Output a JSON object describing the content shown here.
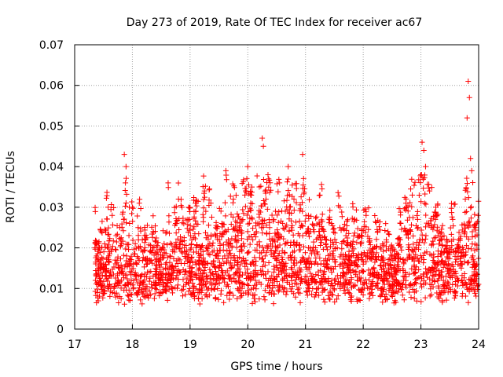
{
  "chart_data": {
    "type": "scatter",
    "title": "Day 273 of 2019, Rate Of TEC Index for receiver ac67",
    "xlabel": "GPS time / hours",
    "ylabel": "ROTI / TECUs",
    "xlim": [
      17,
      24
    ],
    "ylim": [
      0,
      0.07
    ],
    "xticks": [
      "17",
      "18",
      "19",
      "20",
      "21",
      "22",
      "23",
      "24"
    ],
    "yticks": [
      "0",
      "0.01",
      "0.02",
      "0.03",
      "0.04",
      "0.05",
      "0.06",
      "0.07"
    ],
    "grid": true,
    "marker": "+",
    "marker_color": "#ff0000",
    "series": [
      {
        "name": "ROTI",
        "x_start": 17.35,
        "x_end": 24.0,
        "description_of_density": "dense band of points",
        "points": [
          [
            17.36,
            0.012
          ],
          [
            17.38,
            0.018
          ],
          [
            17.4,
            0.009
          ],
          [
            17.42,
            0.02
          ],
          [
            17.44,
            0.015
          ],
          [
            17.46,
            0.024
          ],
          [
            17.48,
            0.011
          ],
          [
            17.5,
            0.016
          ],
          [
            17.52,
            0.021
          ],
          [
            17.55,
            0.013
          ],
          [
            17.58,
            0.03
          ],
          [
            17.6,
            0.019
          ],
          [
            17.62,
            0.014
          ],
          [
            17.65,
            0.028
          ],
          [
            17.68,
            0.01
          ],
          [
            17.7,
            0.017
          ],
          [
            17.72,
            0.023
          ],
          [
            17.75,
            0.012
          ],
          [
            17.78,
            0.008
          ],
          [
            17.8,
            0.022
          ],
          [
            17.82,
            0.015
          ],
          [
            17.85,
            0.027
          ],
          [
            17.86,
            0.043
          ],
          [
            17.88,
            0.036
          ],
          [
            17.89,
            0.04
          ],
          [
            17.9,
            0.018
          ],
          [
            17.93,
            0.011
          ],
          [
            17.95,
            0.026
          ],
          [
            17.98,
            0.014
          ],
          [
            18.0,
            0.03
          ],
          [
            18.02,
            0.016
          ],
          [
            18.05,
            0.021
          ],
          [
            18.08,
            0.009
          ],
          [
            18.1,
            0.025
          ],
          [
            18.12,
            0.031
          ],
          [
            18.15,
            0.013
          ],
          [
            18.18,
            0.019
          ],
          [
            18.2,
            0.01
          ],
          [
            18.23,
            0.022
          ],
          [
            18.26,
            0.014
          ],
          [
            18.3,
            0.017
          ],
          [
            18.33,
            0.011
          ],
          [
            18.36,
            0.024
          ],
          [
            18.4,
            0.013
          ],
          [
            18.43,
            0.019
          ],
          [
            18.46,
            0.009
          ],
          [
            18.5,
            0.016
          ],
          [
            18.55,
            0.021
          ],
          [
            18.6,
            0.012
          ],
          [
            18.62,
            0.036
          ],
          [
            18.65,
            0.018
          ],
          [
            18.7,
            0.01
          ],
          [
            18.75,
            0.026
          ],
          [
            18.8,
            0.032
          ],
          [
            18.83,
            0.014
          ],
          [
            18.86,
            0.03
          ],
          [
            18.9,
            0.02
          ],
          [
            18.93,
            0.011
          ],
          [
            18.96,
            0.027
          ],
          [
            19.0,
            0.015
          ],
          [
            19.03,
            0.022
          ],
          [
            19.06,
            0.009
          ],
          [
            19.1,
            0.029
          ],
          [
            19.15,
            0.017
          ],
          [
            19.2,
            0.012
          ],
          [
            19.25,
            0.034
          ],
          [
            19.28,
            0.02
          ],
          [
            19.32,
            0.01
          ],
          [
            19.36,
            0.031
          ],
          [
            19.4,
            0.016
          ],
          [
            19.45,
            0.023
          ],
          [
            19.5,
            0.013
          ],
          [
            19.55,
            0.026
          ],
          [
            19.6,
            0.018
          ],
          [
            19.62,
            0.039
          ],
          [
            19.65,
            0.011
          ],
          [
            19.7,
            0.021
          ],
          [
            19.75,
            0.032
          ],
          [
            19.8,
            0.014
          ],
          [
            19.85,
            0.025
          ],
          [
            19.9,
            0.01
          ],
          [
            19.95,
            0.033
          ],
          [
            20.0,
            0.04
          ],
          [
            20.02,
            0.019
          ],
          [
            20.05,
            0.031
          ],
          [
            20.1,
            0.013
          ],
          [
            20.15,
            0.024
          ],
          [
            20.2,
            0.035
          ],
          [
            20.25,
            0.047
          ],
          [
            20.27,
            0.045
          ],
          [
            20.3,
            0.018
          ],
          [
            20.35,
            0.038
          ],
          [
            20.4,
            0.012
          ],
          [
            20.45,
            0.027
          ],
          [
            20.5,
            0.02
          ],
          [
            20.55,
            0.036
          ],
          [
            20.6,
            0.015
          ],
          [
            20.65,
            0.029
          ],
          [
            20.7,
            0.04
          ],
          [
            20.75,
            0.017
          ],
          [
            20.8,
            0.032
          ],
          [
            20.85,
            0.011
          ],
          [
            20.9,
            0.023
          ],
          [
            20.95,
            0.043
          ],
          [
            21.0,
            0.016
          ],
          [
            21.05,
            0.028
          ],
          [
            21.1,
            0.012
          ],
          [
            21.15,
            0.024
          ],
          [
            21.2,
            0.019
          ],
          [
            21.25,
            0.033
          ],
          [
            21.3,
            0.01
          ],
          [
            21.35,
            0.021
          ],
          [
            21.4,
            0.015
          ],
          [
            21.45,
            0.026
          ],
          [
            21.5,
            0.012
          ],
          [
            21.55,
            0.02
          ],
          [
            21.6,
            0.03
          ],
          [
            21.65,
            0.014
          ],
          [
            21.7,
            0.023
          ],
          [
            21.75,
            0.009
          ],
          [
            21.8,
            0.018
          ],
          [
            21.85,
            0.027
          ],
          [
            21.9,
            0.012
          ],
          [
            21.95,
            0.021
          ],
          [
            22.0,
            0.016
          ],
          [
            22.05,
            0.028
          ],
          [
            22.1,
            0.01
          ],
          [
            22.15,
            0.019
          ],
          [
            22.2,
            0.014
          ],
          [
            22.25,
            0.024
          ],
          [
            22.3,
            0.008
          ],
          [
            22.35,
            0.017
          ],
          [
            22.4,
            0.022
          ],
          [
            22.45,
            0.011
          ],
          [
            22.5,
            0.018
          ],
          [
            22.55,
            0.007
          ],
          [
            22.6,
            0.015
          ],
          [
            22.65,
            0.026
          ],
          [
            22.7,
            0.012
          ],
          [
            22.75,
            0.03
          ],
          [
            22.8,
            0.018
          ],
          [
            22.85,
            0.033
          ],
          [
            22.9,
            0.014
          ],
          [
            22.95,
            0.025
          ],
          [
            23.0,
            0.038
          ],
          [
            23.02,
            0.046
          ],
          [
            23.05,
            0.044
          ],
          [
            23.08,
            0.04
          ],
          [
            23.1,
            0.019
          ],
          [
            23.15,
            0.034
          ],
          [
            23.2,
            0.012
          ],
          [
            23.25,
            0.027
          ],
          [
            23.3,
            0.016
          ],
          [
            23.35,
            0.022
          ],
          [
            23.4,
            0.01
          ],
          [
            23.45,
            0.019
          ],
          [
            23.5,
            0.013
          ],
          [
            23.55,
            0.027
          ],
          [
            23.6,
            0.011
          ],
          [
            23.65,
            0.02
          ],
          [
            23.7,
            0.015
          ],
          [
            23.75,
            0.024
          ],
          [
            23.8,
            0.052
          ],
          [
            23.82,
            0.061
          ],
          [
            23.84,
            0.057
          ],
          [
            23.86,
            0.042
          ],
          [
            23.88,
            0.039
          ],
          [
            23.9,
            0.018
          ],
          [
            23.92,
            0.012
          ],
          [
            23.95,
            0.025
          ],
          [
            23.97,
            0.016
          ],
          [
            23.99,
            0.028
          ]
        ]
      }
    ]
  }
}
